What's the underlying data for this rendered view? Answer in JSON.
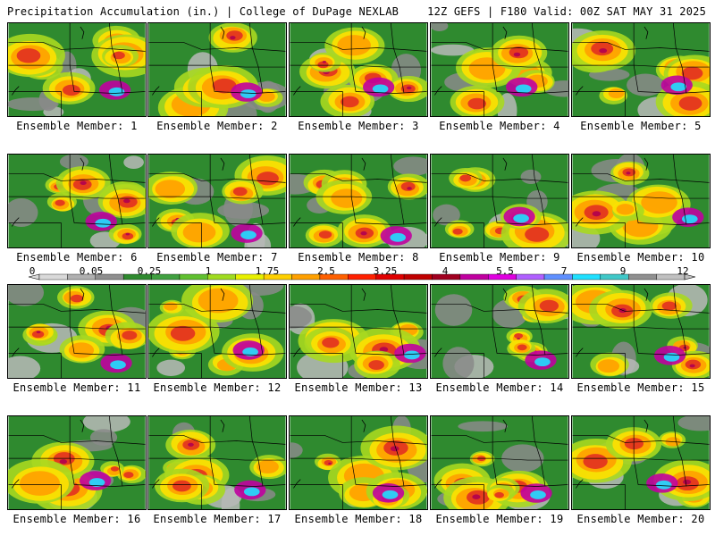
{
  "header": {
    "left": "Precipitation Accumulation (in.) | College of DuPage NEXLAB",
    "right": "12Z GEFS | F180 Valid: 00Z SAT MAY 31 2025"
  },
  "caption_prefix": "Ensemble Member: ",
  "members": [
    1,
    2,
    3,
    4,
    5,
    6,
    7,
    8,
    9,
    10,
    11,
    12,
    13,
    14,
    15,
    16,
    17,
    18,
    19,
    20
  ],
  "colorbar": {
    "labels": [
      "0",
      "0.05",
      "0.25",
      "1",
      "1.75",
      "2.5",
      "3.25",
      "4",
      "5.5",
      "7",
      "9",
      "12"
    ],
    "colors": [
      "#d9d9d9",
      "#b0b0b0",
      "#8f8f8f",
      "#2f8a2f",
      "#40a040",
      "#60c030",
      "#a0dc20",
      "#e8f000",
      "#ffd000",
      "#ffa000",
      "#ff6000",
      "#ff2000",
      "#e00000",
      "#c00000",
      "#a00020",
      "#c000a0",
      "#e000e0",
      "#b060ff",
      "#6090ff",
      "#20e0ff",
      "#40c8c8",
      "#909090",
      "#c0c0c0"
    ]
  }
}
